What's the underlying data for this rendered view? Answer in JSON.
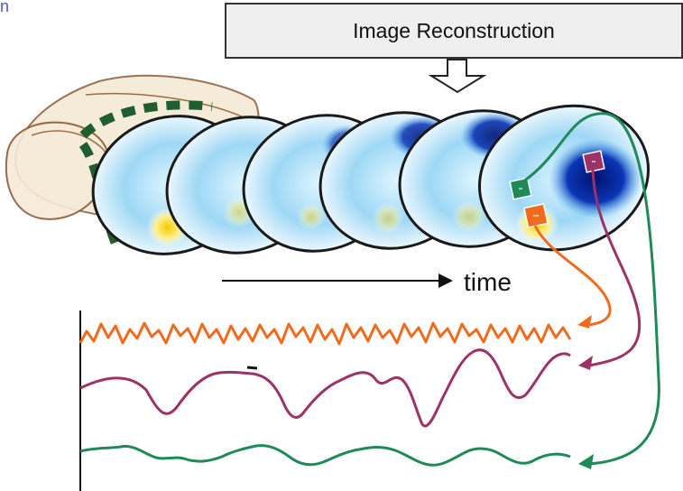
{
  "header": {
    "title": "Image Reconstruction",
    "corner_mark": "n"
  },
  "axis": {
    "time_label": "time"
  },
  "colors": {
    "orange": "#ef6c1f",
    "magenta": "#9b3268",
    "green": "#1f8a58",
    "slice_outline": "#1a1a1a",
    "box_fill": "#efefef"
  },
  "icons": {
    "header_arrow": "down-arrow-outline-icon",
    "time_arrow": "right-arrow-icon"
  }
}
